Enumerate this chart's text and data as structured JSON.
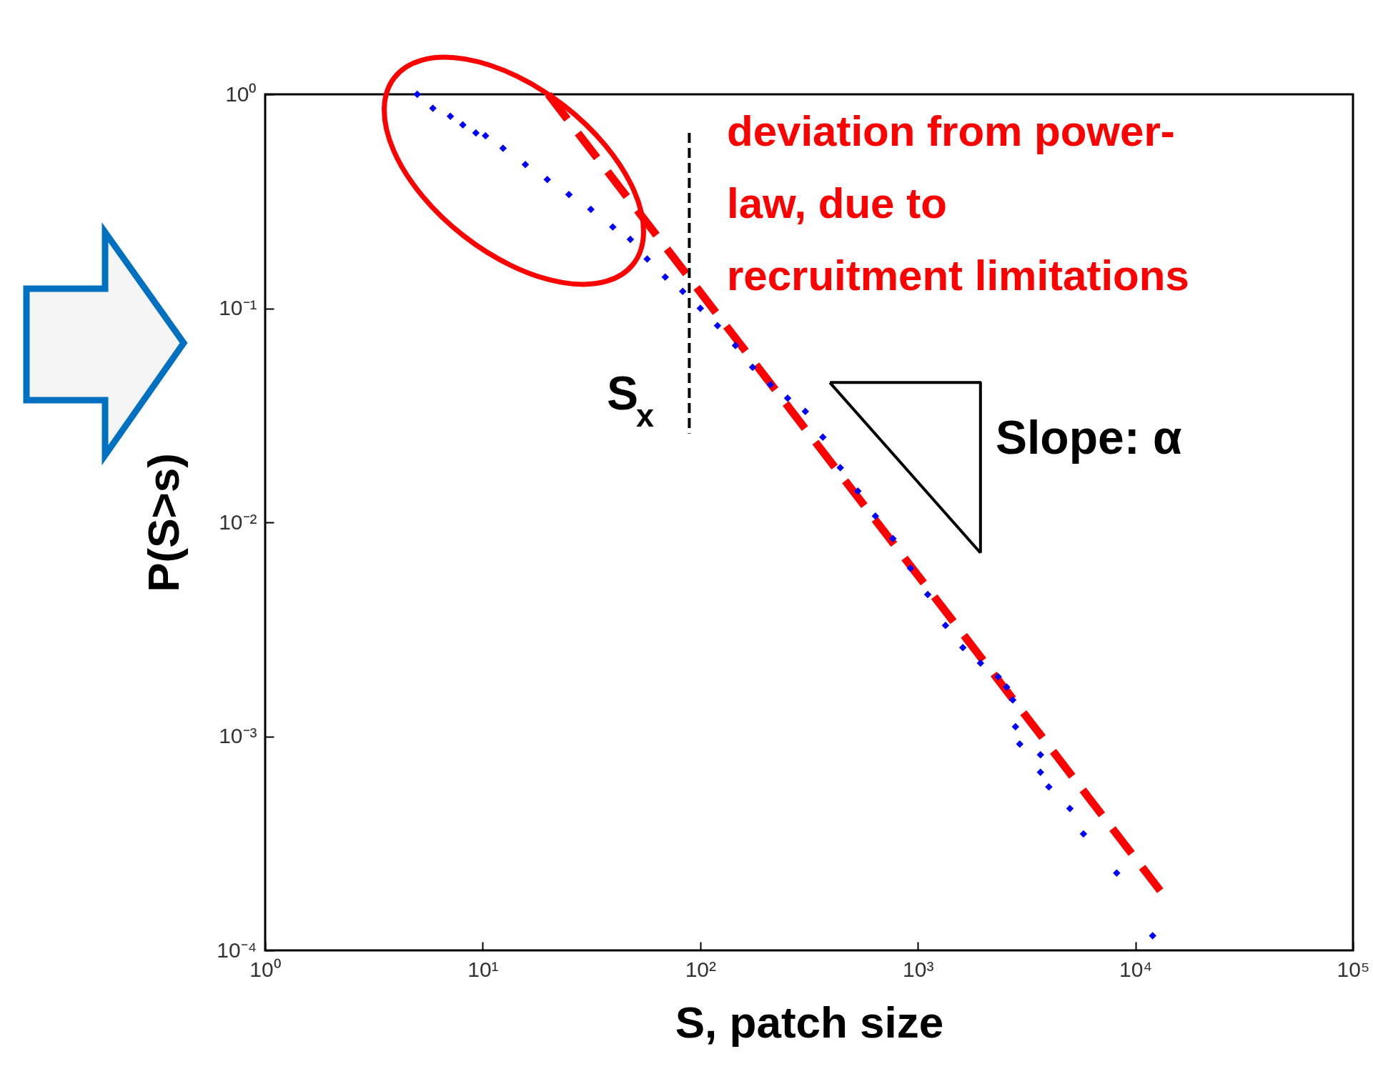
{
  "chart_data": {
    "type": "scatter",
    "xlabel": "S, patch size",
    "ylabel": "P(S>s)",
    "log": "xy",
    "xlim": [
      1,
      100000
    ],
    "ylim": [
      0.0001,
      1
    ],
    "xticks": [
      {
        "value": 1,
        "label": "10⁰"
      },
      {
        "value": 10,
        "label": "10¹"
      },
      {
        "value": 100,
        "label": "10²"
      },
      {
        "value": 1000,
        "label": "10³"
      },
      {
        "value": 10000,
        "label": "10⁴"
      },
      {
        "value": 100000,
        "label": "10⁵"
      }
    ],
    "yticks": [
      {
        "value": 0.0001,
        "label": "10⁻⁴"
      },
      {
        "value": 0.001,
        "label": "10⁻³"
      },
      {
        "value": 0.01,
        "label": "10⁻²"
      },
      {
        "value": 0.1,
        "label": "10⁻¹"
      },
      {
        "value": 1,
        "label": "10⁰"
      }
    ],
    "series": [
      {
        "type": "scatter",
        "color": "#0000ff",
        "marker": "diamond",
        "x": [
          5.0,
          5.9,
          7.1,
          8.1,
          9.3,
          10.3,
          12.4,
          15.7,
          19.8,
          24.9,
          31.4,
          39.6,
          47.7,
          57,
          69,
          83,
          100,
          120,
          145,
          174,
          210,
          252,
          304,
          366,
          440,
          530,
          638,
          768,
          925,
          1110,
          1340,
          1610,
          1940,
          2340,
          2560,
          2730,
          2810,
          2940,
          3660,
          3660,
          4000,
          5000,
          5770,
          8200,
          12000
        ],
        "values": [
          1.0,
          0.86,
          0.79,
          0.72,
          0.66,
          0.64,
          0.56,
          0.47,
          0.4,
          0.34,
          0.29,
          0.24,
          0.21,
          0.17,
          0.14,
          0.12,
          0.1,
          0.083,
          0.067,
          0.053,
          0.044,
          0.038,
          0.033,
          0.025,
          0.018,
          0.014,
          0.0107,
          0.0084,
          0.0061,
          0.0046,
          0.0033,
          0.0026,
          0.0022,
          0.0019,
          0.0017,
          0.00148,
          0.00111,
          0.00092,
          0.00082,
          0.00068,
          0.00058,
          0.00046,
          0.00035,
          0.00023,
          0.000117
        ]
      },
      {
        "type": "line",
        "color": "#ff0000",
        "line_style": "dashed",
        "x": [
          20,
          13000
        ],
        "values": [
          1.0,
          0.00019
        ]
      },
      {
        "type": "line",
        "color": "#000000",
        "line_style": "dashed",
        "x": [
          89,
          89
        ],
        "values": [
          0.66,
          0.026
        ]
      },
      {
        "type": "line",
        "color": "#000000",
        "line_style": "solid",
        "x": [
          394,
          1940,
          1940
        ],
        "values": [
          0.045,
          0.045,
          0.0072
        ]
      },
      {
        "type": "line",
        "color": "#000000",
        "line_style": "solid",
        "x": [
          394,
          1940
        ],
        "values": [
          0.045,
          0.0072
        ]
      }
    ],
    "annotations": [
      "deviation from power-\nlaw, due to\nrecruitment limitations",
      "S$_{x}$",
      "Slope: α"
    ]
  }
}
